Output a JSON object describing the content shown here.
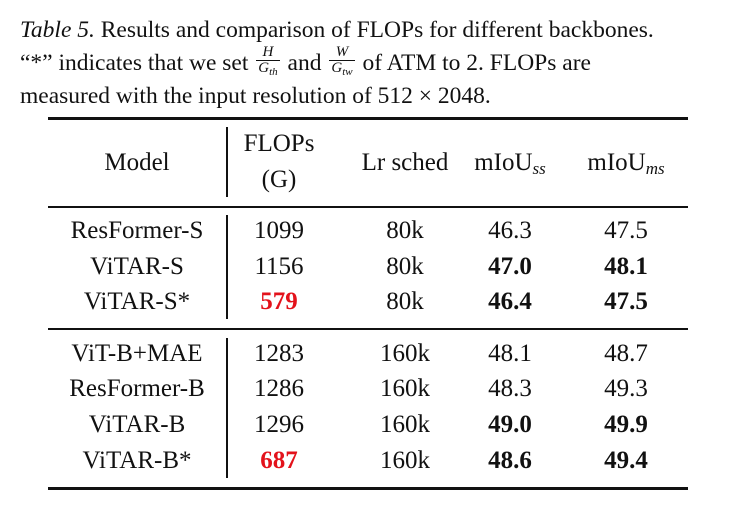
{
  "caption": {
    "label": "Table 5.",
    "line1_text": " Results and comparison of FLOPs for different backbones.",
    "line2_a": "“*” indicates that we set ",
    "frac1_num": "H",
    "frac1_den": "G",
    "frac1_sub": "th",
    "line2_b": " and ",
    "frac2_num": "W",
    "frac2_den": "G",
    "frac2_sub": "tw",
    "line2_c": " of ATM to 2. FLOPs are",
    "line3_text": "measured with the input resolution of 512 × 2048."
  },
  "table": {
    "headers": {
      "model": "Model",
      "flops_line1": "FLOPs",
      "flops_line2": "(G)",
      "lr_sched": "Lr sched",
      "miou_ss": "mIoU",
      "miou_ss_sub": "ss",
      "miou_ms": "mIoU",
      "miou_ms_sub": "ms"
    },
    "group1": [
      {
        "model": "ResFormer-S",
        "flops": "1099",
        "lr": "80k",
        "ss": "46.3",
        "ms": "47.5"
      },
      {
        "model": "ViTAR-S",
        "flops": "1156",
        "lr": "80k",
        "ss": "47.0",
        "ms": "48.1"
      },
      {
        "model": "ViTAR-S*",
        "flops": "579",
        "lr": "80k",
        "ss": "46.4",
        "ms": "47.5"
      }
    ],
    "group2": [
      {
        "model": "ViT-B+MAE",
        "flops": "1283",
        "lr": "160k",
        "ss": "48.1",
        "ms": "48.7"
      },
      {
        "model": "ResFormer-B",
        "flops": "1286",
        "lr": "160k",
        "ss": "48.3",
        "ms": "49.3"
      },
      {
        "model": "ViTAR-B",
        "flops": "1296",
        "lr": "160k",
        "ss": "49.0",
        "ms": "49.9"
      },
      {
        "model": "ViTAR-B*",
        "flops": "687",
        "lr": "160k",
        "ss": "48.6",
        "ms": "49.4"
      }
    ]
  }
}
